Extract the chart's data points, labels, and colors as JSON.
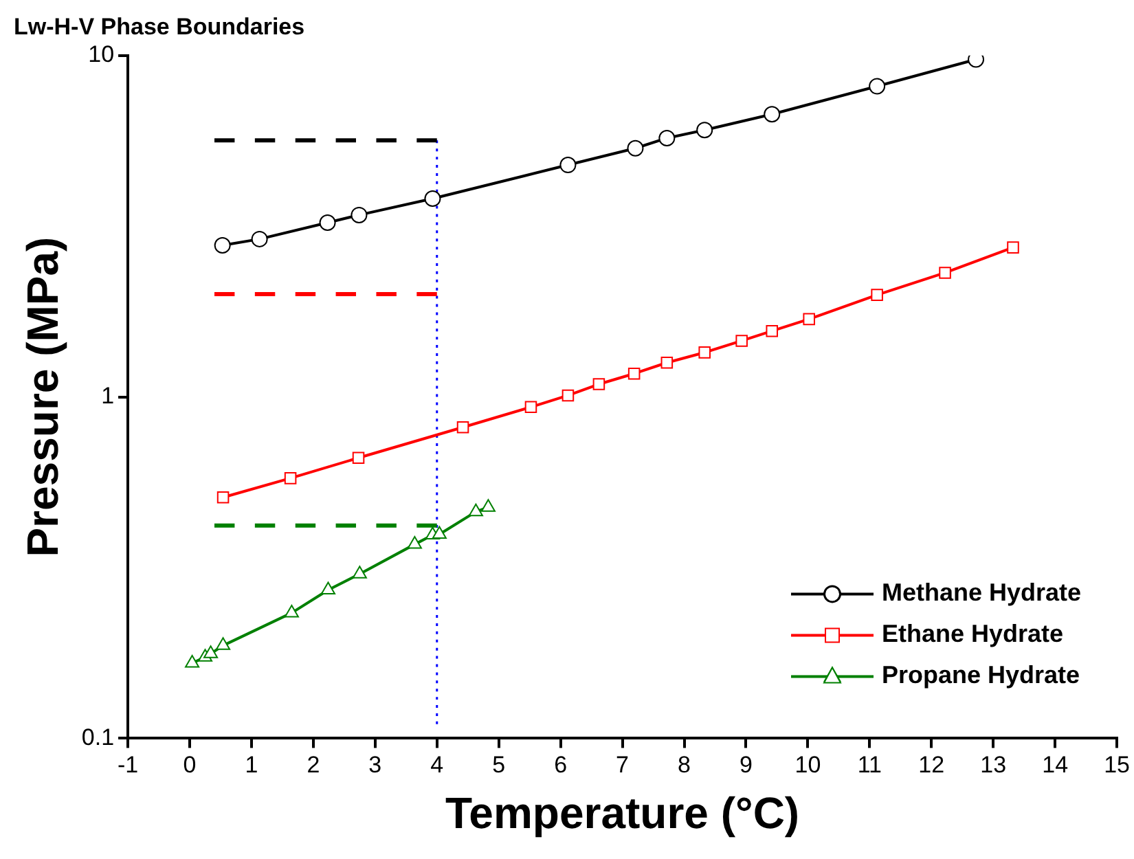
{
  "chart_data": {
    "type": "line",
    "title": "Lw-H-V Phase Boundaries",
    "xlabel": "Temperature (°C)",
    "ylabel": "Pressure (MPa)",
    "xlim": [
      -1,
      15
    ],
    "xticks": [
      -1,
      0,
      1,
      2,
      3,
      4,
      5,
      6,
      7,
      8,
      9,
      10,
      11,
      12,
      13,
      14,
      15
    ],
    "ylim": [
      0.1,
      10
    ],
    "yticks": [
      0.1,
      1,
      10
    ],
    "log": "y",
    "grid": false,
    "legend": "bottom right",
    "line_style": "solid",
    "series": [
      {
        "name": "Methane Hydrate",
        "color": "#000000",
        "marker": "circle",
        "x": [
          0.53,
          1.13,
          2.23,
          2.74,
          3.93,
          6.12,
          7.21,
          7.72,
          8.33,
          9.42,
          11.12,
          12.72
        ],
        "values": [
          2.78,
          2.9,
          3.24,
          3.41,
          3.81,
          4.78,
          5.35,
          5.73,
          6.05,
          6.73,
          8.13,
          9.74
        ]
      },
      {
        "name": "Ethane Hydrate",
        "color": "#ff0000",
        "marker": "square",
        "x": [
          0.54,
          1.63,
          2.73,
          4.42,
          5.52,
          6.12,
          6.62,
          7.19,
          7.72,
          8.33,
          8.93,
          9.42,
          10.02,
          11.12,
          12.22,
          13.32
        ],
        "values": [
          0.508,
          0.578,
          0.663,
          0.815,
          0.934,
          1.01,
          1.09,
          1.17,
          1.26,
          1.35,
          1.46,
          1.56,
          1.69,
          1.99,
          2.31,
          2.74
        ]
      },
      {
        "name": "Propane Hydrate",
        "color": "#008000",
        "marker": "triangle",
        "x": [
          0.04,
          0.25,
          0.34,
          0.54,
          1.65,
          2.24,
          2.75,
          3.64,
          3.93,
          4.04,
          4.63,
          4.83
        ],
        "values": [
          0.166,
          0.173,
          0.177,
          0.187,
          0.233,
          0.272,
          0.303,
          0.37,
          0.394,
          0.396,
          0.461,
          0.475
        ]
      },
      {
        "color": "#000000",
        "marker": "none",
        "line_style": "dashed",
        "x": [
          0.4,
          4
        ],
        "values": [
          5.64,
          5.64
        ]
      },
      {
        "color": "#ff0000",
        "marker": "none",
        "line_style": "dashed",
        "x": [
          0.4,
          4
        ],
        "values": [
          2.0,
          2.0
        ]
      },
      {
        "color": "#008000",
        "marker": "none",
        "line_style": "dashed",
        "x": [
          0.4,
          4
        ],
        "values": [
          0.42,
          0.42
        ]
      },
      {
        "color": "#0000ff",
        "marker": "none",
        "line_style": "dotted",
        "x": [
          4,
          4
        ],
        "values": [
          0.11,
          5.64
        ]
      }
    ]
  }
}
